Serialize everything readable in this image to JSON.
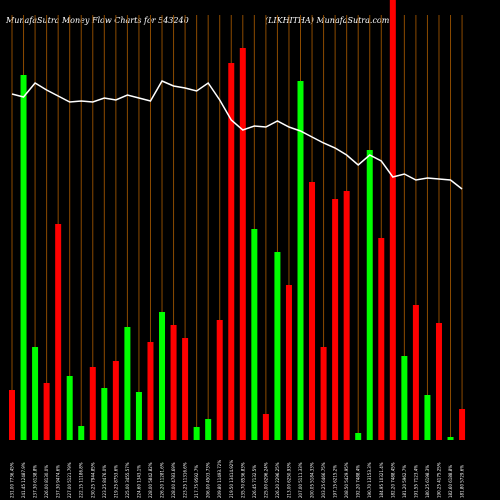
{
  "chart_data": {
    "type": "bar",
    "title": "MunafaSutra  Money Flow  Charts for 543240",
    "subtitle": "(LIKHITHA) MunafaSutra.com",
    "categories": [
      "231.00 7736.45%",
      "241.45 12487.9%",
      "237.30 6138.8%",
      "226.00 8130.0%",
      "237.30 9474.6%",
      "227.00 5121.79%",
      "222.15 11186.8%",
      "230.25 7944.85%",
      "223.25 8476.0%",
      "219.25 8753.6%",
      "225.00 3455.57%",
      "224.60 1343.1%",
      "228.00 5842.82%",
      "226.20 11281.6%",
      "228.00 4783.69%",
      "223.25 11316.6%",
      "217.75 9592.7%",
      "206.00 4503.73%",
      "209.80 11493.72%",
      "219.50 13414.92%",
      "235.70 8536.83%",
      "226.45 7132.5%",
      "225.00 6296.24%",
      "226.20 2296.25%",
      "213.00 6250.93%",
      "207.00 5111.33%",
      "200.05 5184.33%",
      "203.25 6466.75%",
      "197.15 6215.2%",
      "208.50 5429.95%",
      "192.20 7488.4%",
      "190.70 13153.3%",
      "184.95 10321.4%",
      "182.20 7488.45%",
      "181.20 5962.7%",
      "191.55 7123.4%",
      "180.25 6198.3%",
      "190.25 4175.25%",
      "182.60 6188.8%",
      "181.80 5729.6%"
    ],
    "values": [
      50,
      365,
      93,
      57,
      216,
      64,
      14,
      73,
      52,
      79,
      113,
      48,
      98,
      128,
      115,
      102,
      13,
      21,
      120,
      377,
      392,
      211,
      26,
      188,
      155,
      359,
      258,
      93,
      241,
      249,
      7,
      290,
      202,
      445,
      84,
      135,
      45,
      117,
      3,
      31
    ],
    "colors": [
      "#ff0000",
      "#00ff00",
      "#00ff00",
      "#ff0000",
      "#ff0000",
      "#00ff00",
      "#00ff00",
      "#ff0000",
      "#00ff00",
      "#ff0000",
      "#00ff00",
      "#00ff00",
      "#ff0000",
      "#00ff00",
      "#ff0000",
      "#ff0000",
      "#00ff00",
      "#00ff00",
      "#ff0000",
      "#ff0000",
      "#ff0000",
      "#00ff00",
      "#ff0000",
      "#00ff00",
      "#ff0000",
      "#00ff00",
      "#ff0000",
      "#ff0000",
      "#ff0000",
      "#ff0000",
      "#00ff00",
      "#00ff00",
      "#ff0000",
      "#ff0000",
      "#00ff00",
      "#ff0000",
      "#00ff00",
      "#ff0000",
      "#00ff00",
      "#ff0000"
    ],
    "line": {
      "color": "#ffffff",
      "values": [
        346,
        343,
        357,
        350,
        344,
        338,
        339,
        338,
        342,
        340,
        345,
        342,
        339,
        359,
        354,
        352,
        349,
        357,
        340,
        320,
        310,
        314,
        313,
        319,
        313,
        309,
        303,
        297,
        292,
        285,
        275,
        285,
        279,
        263,
        266,
        260,
        262,
        261,
        260,
        251
      ]
    },
    "ylim": [
      0,
      440
    ],
    "grid_color": "#8b4a00"
  }
}
